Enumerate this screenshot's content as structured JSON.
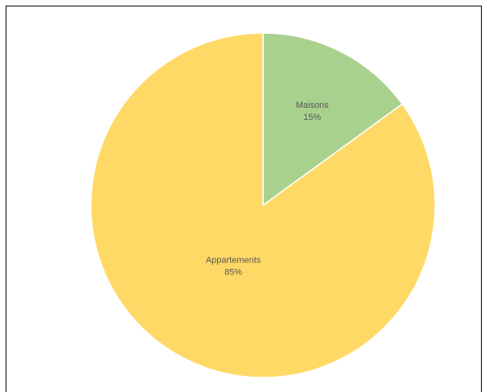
{
  "chart_data": {
    "type": "pie",
    "title": "",
    "categories": [
      "Maisons",
      "Appartements"
    ],
    "values": [
      15,
      85
    ],
    "labels": [
      "15%",
      "85%"
    ],
    "colors": [
      "#a9d18e",
      "#ffd966"
    ],
    "start_angle_deg": 0,
    "legend": "none"
  }
}
